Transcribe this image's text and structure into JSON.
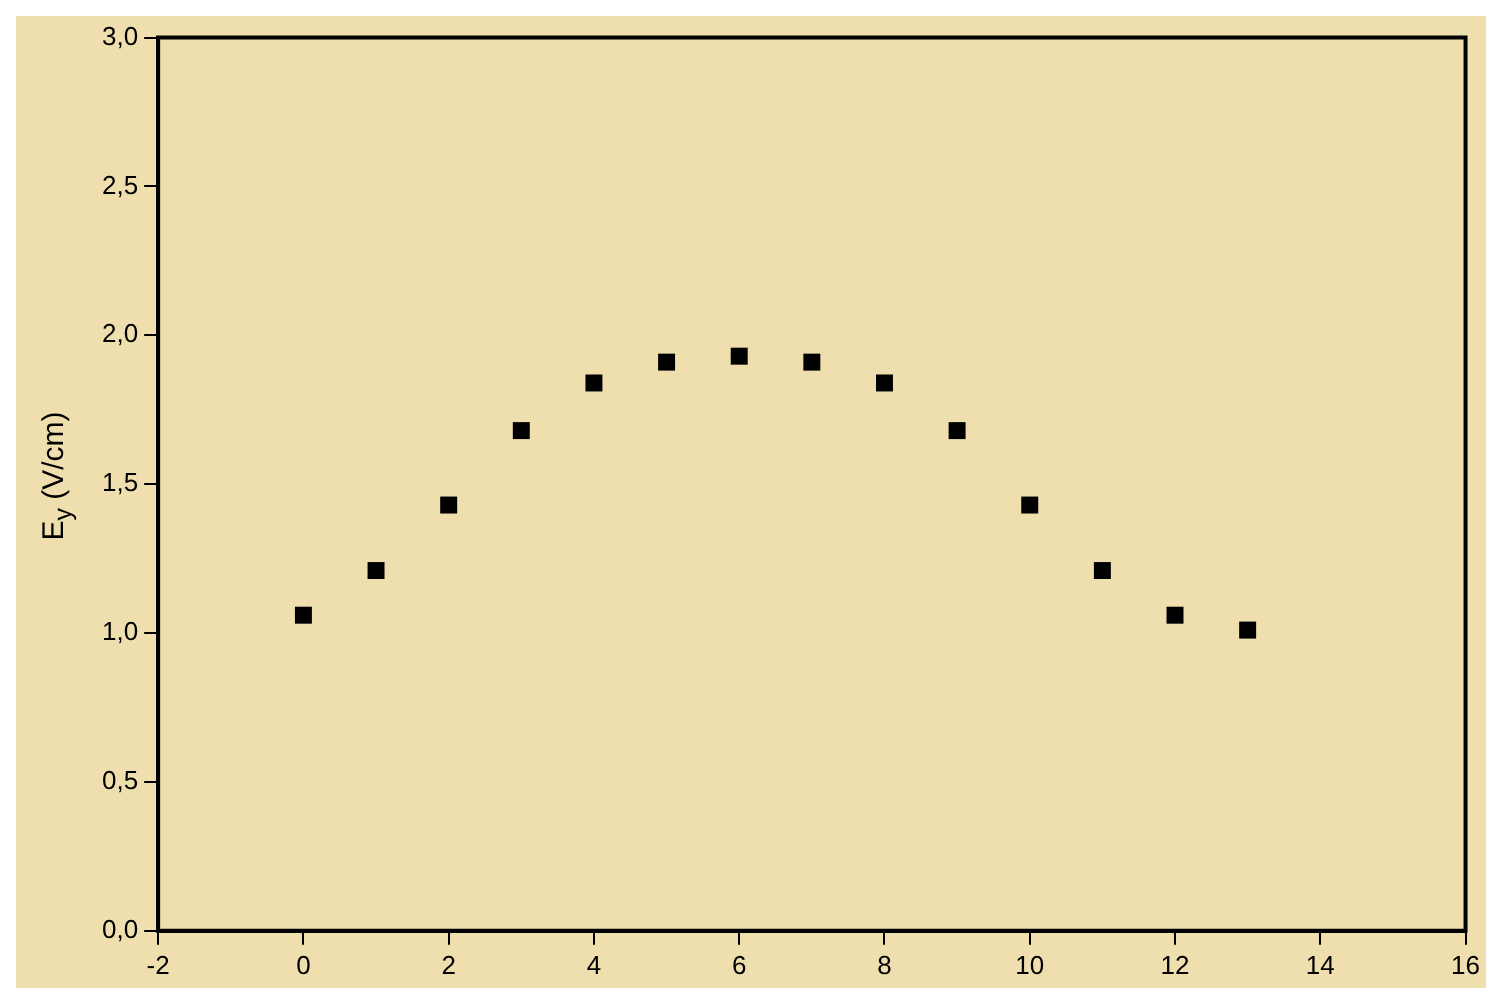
{
  "chart_data": {
    "type": "scatter",
    "ylabel": "E$_{y}$ (V/cm)",
    "marker": "square",
    "x": [
      0,
      1,
      2,
      3,
      4,
      5,
      6,
      7,
      8,
      9,
      10,
      11,
      12,
      13
    ],
    "series": [
      {
        "color": "#000000",
        "values": [
          1.06,
          1.21,
          1.43,
          1.68,
          1.84,
          1.91,
          1.93,
          1.91,
          1.84,
          1.68,
          1.43,
          1.21,
          1.06,
          1.01
        ]
      }
    ],
    "xlim": [
      -2,
      16
    ],
    "xticks": [
      -2,
      0,
      2,
      4,
      6,
      8,
      10,
      12,
      14,
      16
    ],
    "ylim": [
      0,
      3
    ],
    "yticks": [
      {
        "value": 0,
        "label": "0,0"
      },
      {
        "value": 0.5,
        "label": "0,5"
      },
      {
        "value": 1,
        "label": "1,0"
      },
      {
        "value": 1.5,
        "label": "1,5"
      },
      {
        "value": 2,
        "label": "2,0"
      },
      {
        "value": 2.5,
        "label": "2,5"
      },
      {
        "value": 3,
        "label": "3,0"
      }
    ],
    "grid": false,
    "legend": false
  }
}
